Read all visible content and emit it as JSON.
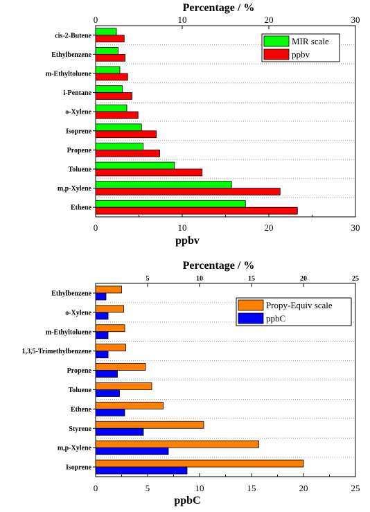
{
  "chart_data": [
    {
      "type": "bar",
      "orientation": "horizontal",
      "categories": [
        "Ethene",
        "m,p-Xylene",
        "Toluene",
        "Propene",
        "Isoprene",
        "o-Xylene",
        "i-Pentane",
        "m-Ethyltoluene",
        "Ethylbenzene",
        "cis-2-Butene"
      ],
      "series": [
        {
          "name": "MIR scale",
          "color": "#00ff00",
          "values": [
            17.3,
            15.7,
            9.1,
            5.5,
            5.3,
            3.6,
            3.1,
            2.8,
            2.6,
            2.4
          ]
        },
        {
          "name": "ppbv",
          "color": "#ff0000",
          "values": [
            23.3,
            21.3,
            12.3,
            7.4,
            7.0,
            4.9,
            4.2,
            3.7,
            3.4,
            3.3
          ]
        }
      ],
      "xlabel": "ppbv",
      "x2label": "Percentage / %",
      "xlim": [
        0,
        30
      ],
      "xticks": [
        0,
        10,
        20,
        30
      ],
      "x2ticks": [
        0,
        10,
        20,
        30
      ],
      "grid": "horizontal dotted",
      "legend": "top-right"
    },
    {
      "type": "bar",
      "orientation": "horizontal",
      "categories": [
        "Isoprene",
        "m,p-Xylene",
        "Styrene",
        "Ethene",
        "Toluene",
        "Propene",
        "1,3,5-Trimethylbenzene",
        "m-Ethyltoluene",
        "o-Xylene",
        "Ethylbenzene"
      ],
      "series": [
        {
          "name": "Propy-Equiv scale",
          "color": "#ff8000",
          "values": [
            20.0,
            15.7,
            10.4,
            6.5,
            5.4,
            4.8,
            2.9,
            2.8,
            2.7,
            2.5
          ]
        },
        {
          "name": "ppbC",
          "color": "#0000ff",
          "values": [
            8.8,
            7.0,
            4.6,
            2.8,
            2.3,
            2.1,
            1.2,
            1.2,
            1.2,
            1.0
          ]
        }
      ],
      "xlabel": "ppbC",
      "x2label": "Percentage / %",
      "xlim": [
        0,
        25
      ],
      "xticks": [
        0,
        5,
        10,
        15,
        20,
        25
      ],
      "x2ticks": [
        5,
        10,
        15,
        20,
        25
      ],
      "x2lim": [
        0,
        25.0
      ],
      "grid": "horizontal dotted",
      "legend": "top-right"
    }
  ]
}
